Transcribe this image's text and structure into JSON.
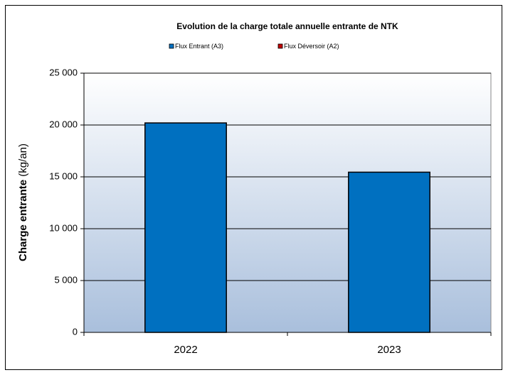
{
  "chart_data": {
    "type": "stacked_bar",
    "title": "Evolution de la charge totale annuelle entrante de NTK",
    "ylabel": "Charge entrante",
    "yunit": "(kg/an)",
    "categories": [
      "2022",
      "2023"
    ],
    "series": [
      {
        "name": "Flux Entrant (A3)",
        "color": "#0070c0",
        "values": [
          20200,
          15450
        ]
      },
      {
        "name": "Flux Déversoir (A2)",
        "color": "#c00000",
        "values": [
          0,
          0
        ]
      }
    ],
    "ylim": [
      0,
      25000
    ],
    "yticks": [
      0,
      {
        "value": 5000,
        "label": "5 000"
      },
      {
        "value": 10000,
        "label": "10 000"
      },
      {
        "value": 15000,
        "label": "15 000"
      },
      {
        "value": 20000,
        "label": "20 000"
      },
      {
        "value": 25000,
        "label": "25 000"
      }
    ],
    "grid": true,
    "legend": "top"
  }
}
